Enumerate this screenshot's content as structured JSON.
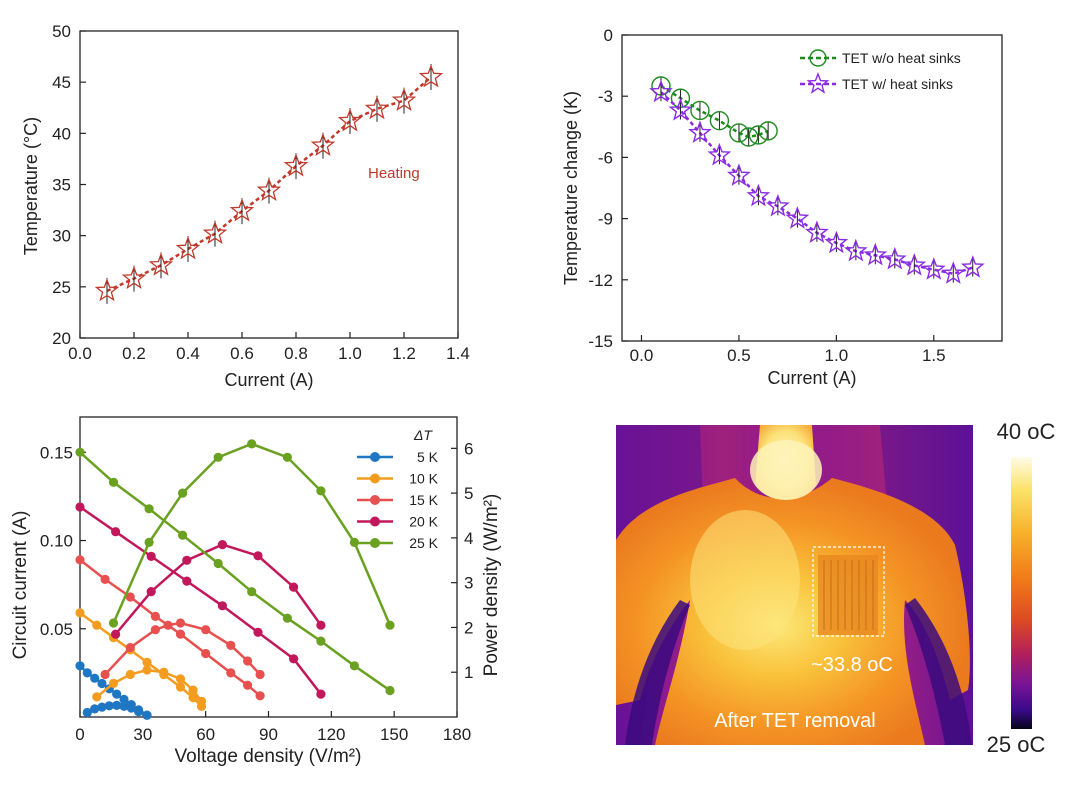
{
  "chart_data": [
    {
      "id": "a",
      "type": "scatter",
      "xlabel": "Current (A)",
      "ylabel": "Temperature (°C)",
      "xlim": [
        0.0,
        1.4
      ],
      "ylim": [
        20,
        50
      ],
      "xticks": [
        "0.0",
        "0.2",
        "0.4",
        "0.6",
        "0.8",
        "1.0",
        "1.2",
        "1.4"
      ],
      "yticks": [
        "20",
        "25",
        "30",
        "35",
        "40",
        "45",
        "50"
      ],
      "annotation": "Heating",
      "series": [
        {
          "color": "#c0392b",
          "marker": "star",
          "x": [
            0.1,
            0.2,
            0.3,
            0.4,
            0.5,
            0.6,
            0.7,
            0.8,
            0.9,
            1.0,
            1.1,
            1.2,
            1.3
          ],
          "y": [
            24.6,
            25.8,
            27.1,
            28.7,
            30.2,
            32.4,
            34.4,
            36.8,
            38.8,
            41.2,
            42.4,
            43.2,
            45.5
          ]
        }
      ]
    },
    {
      "id": "b",
      "type": "scatter",
      "xlabel": "Current (A)",
      "ylabel": "Temperature change (K)",
      "xlim": [
        -0.1,
        1.85
      ],
      "ylim": [
        -15,
        0
      ],
      "xticks": [
        "0.0",
        "0.5",
        "1.0",
        "1.5"
      ],
      "xtick_values": [
        0.0,
        0.5,
        1.0,
        1.5
      ],
      "yticks": [
        "0",
        "-3",
        "-6",
        "-9",
        "-12",
        "-15"
      ],
      "ytick_values": [
        0,
        -3,
        -6,
        -9,
        -12,
        -15
      ],
      "legend_position": "top-right",
      "series": [
        {
          "name": "TET w/o heat sinks",
          "color": "#1e8a1e",
          "marker": "circle",
          "x": [
            0.1,
            0.2,
            0.3,
            0.4,
            0.5,
            0.55,
            0.6,
            0.65
          ],
          "y": [
            -2.5,
            -3.1,
            -3.7,
            -4.2,
            -4.8,
            -5.0,
            -4.9,
            -4.7
          ]
        },
        {
          "name": "TET w/ heat sinks",
          "color": "#8a2be2",
          "marker": "star",
          "x": [
            0.1,
            0.2,
            0.3,
            0.4,
            0.5,
            0.6,
            0.7,
            0.8,
            0.9,
            1.0,
            1.1,
            1.2,
            1.3,
            1.4,
            1.5,
            1.6,
            1.7
          ],
          "y": [
            -2.8,
            -3.7,
            -4.8,
            -5.9,
            -6.9,
            -7.9,
            -8.4,
            -9.0,
            -9.7,
            -10.2,
            -10.6,
            -10.8,
            -11.0,
            -11.3,
            -11.5,
            -11.7,
            -11.4
          ]
        }
      ]
    },
    {
      "id": "c",
      "type": "line",
      "xlabel": "Voltage density (V/m²)",
      "ylabel_left": "Circuit current (A)",
      "ylabel_right": "Power density (W/m²)",
      "xlim": [
        0,
        180
      ],
      "ylim_left": [
        0,
        0.17
      ],
      "ylim_right": [
        0,
        6.7
      ],
      "xticks": [
        "0",
        "30",
        "60",
        "90",
        "120",
        "150",
        "180"
      ],
      "yticks_left": [
        "0.05",
        "0.10",
        "0.15"
      ],
      "yticks_right": [
        "1",
        "2",
        "3",
        "4",
        "5",
        "6"
      ],
      "legend_title": "ΔT",
      "legend_position": "top-right",
      "series": [
        {
          "name": "5 K",
          "color": "#1f77c4",
          "current": {
            "x": [
              0,
              3.5,
              7,
              10.5,
              14,
              17.5,
              21,
              24.5,
              28,
              32
            ],
            "y": [
              0.029,
              0.025,
              0.022,
              0.019,
              0.016,
              0.013,
              0.01,
              0.007,
              0.004,
              0.001
            ]
          },
          "power": {
            "x": [
              3.5,
              7,
              10.5,
              14,
              17.5,
              21,
              24.5,
              28,
              32
            ],
            "y": [
              0.1,
              0.18,
              0.22,
              0.25,
              0.26,
              0.24,
              0.2,
              0.12,
              0.04
            ]
          }
        },
        {
          "name": "10 K",
          "color": "#f39c1f",
          "current": {
            "x": [
              0,
              8,
              16,
              24,
              32,
              40,
              48,
              54,
              58
            ],
            "y": [
              0.059,
              0.052,
              0.045,
              0.038,
              0.031,
              0.024,
              0.017,
              0.011,
              0.006
            ]
          },
          "power": {
            "x": [
              8,
              16,
              24,
              32,
              40,
              48,
              54,
              58
            ],
            "y": [
              0.45,
              0.75,
              0.95,
              1.05,
              1.0,
              0.85,
              0.6,
              0.35
            ]
          }
        },
        {
          "name": "15 K",
          "color": "#e8504f",
          "current": {
            "x": [
              0,
              12,
              24,
              36,
              48,
              60,
              72,
              80,
              86
            ],
            "y": [
              0.089,
              0.078,
              0.068,
              0.057,
              0.047,
              0.036,
              0.025,
              0.018,
              0.012
            ]
          },
          "power": {
            "x": [
              12,
              24,
              36,
              42,
              48,
              60,
              72,
              80,
              86
            ],
            "y": [
              0.95,
              1.55,
              1.95,
              2.05,
              2.1,
              1.95,
              1.6,
              1.25,
              0.95
            ]
          }
        },
        {
          "name": "20 K",
          "color": "#c2185b",
          "current": {
            "x": [
              0,
              17,
              34,
              51,
              68,
              85,
              102,
              115
            ],
            "y": [
              0.119,
              0.105,
              0.091,
              0.077,
              0.063,
              0.048,
              0.033,
              0.013
            ]
          },
          "power": {
            "x": [
              17,
              34,
              51,
              68,
              85,
              102,
              115
            ],
            "y": [
              1.85,
              2.8,
              3.5,
              3.85,
              3.6,
              2.9,
              2.05
            ]
          }
        },
        {
          "name": "25 K",
          "color": "#6aa121",
          "current": {
            "x": [
              0,
              16,
              33,
              49,
              66,
              82,
              99,
              115,
              131,
              148
            ],
            "y": [
              0.15,
              0.133,
              0.118,
              0.103,
              0.087,
              0.071,
              0.056,
              0.043,
              0.029,
              0.015
            ]
          },
          "power": {
            "x": [
              16,
              33,
              49,
              66,
              82,
              99,
              115,
              131,
              148
            ],
            "y": [
              2.1,
              3.9,
              5.0,
              5.8,
              6.1,
              5.8,
              5.05,
              3.9,
              2.05
            ]
          }
        }
      ]
    },
    {
      "id": "d",
      "type": "heatmap",
      "caption": "After TET removal",
      "annotation": "~33.8 oC",
      "colorbar_max": "40 oC",
      "colorbar_min": "25 oC",
      "colormap": [
        "#fffbe8",
        "#fbe36a",
        "#f7b12a",
        "#f07a1a",
        "#dc4a22",
        "#b3215a",
        "#7b1495",
        "#3a0a8a",
        "#050518"
      ]
    }
  ]
}
